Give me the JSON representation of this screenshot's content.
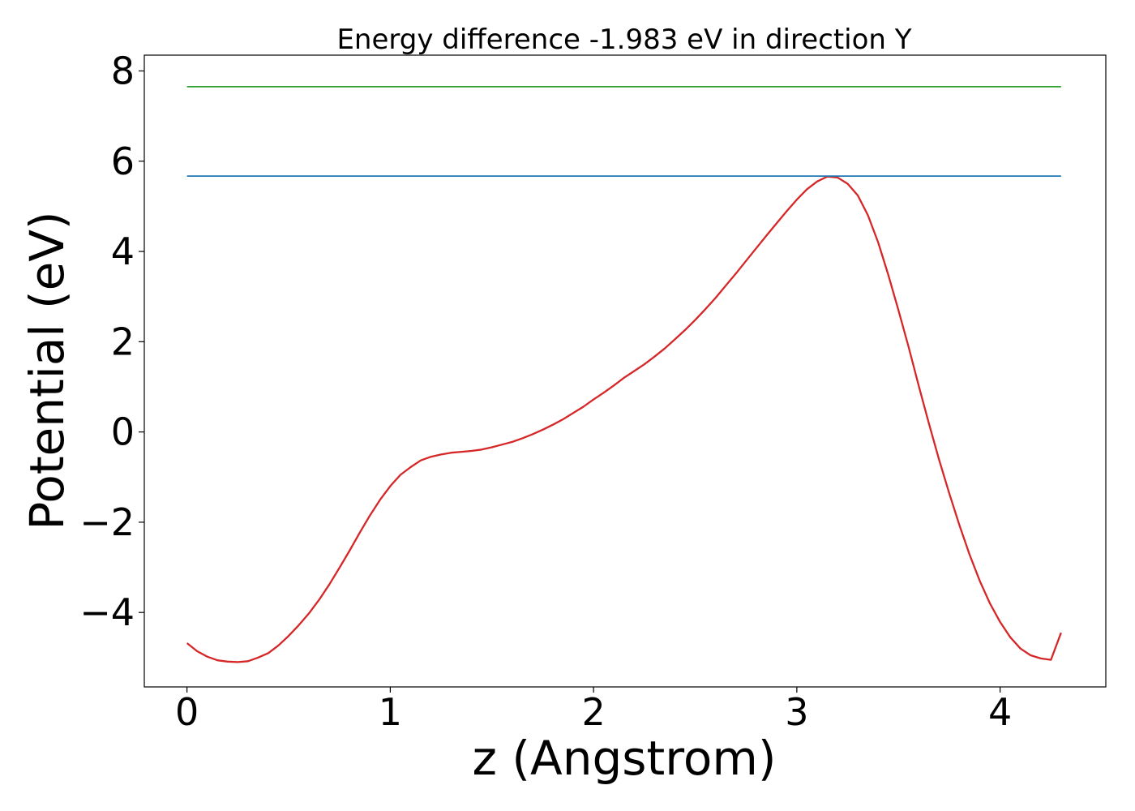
{
  "chart_data": {
    "type": "line",
    "title": "Energy difference -1.983 eV in direction Y",
    "xlabel": "z (Angstrom)",
    "ylabel": "Potential (eV)",
    "xlim": [
      -0.21,
      4.52
    ],
    "ylim": [
      -5.65,
      8.35
    ],
    "xticks": [
      0,
      1,
      2,
      3,
      4
    ],
    "xtick_labels": [
      "0",
      "1",
      "2",
      "3",
      "4"
    ],
    "yticks": [
      -4,
      -2,
      0,
      2,
      4,
      6,
      8
    ],
    "ytick_labels": [
      "−4",
      "−2",
      "0",
      "2",
      "4",
      "6",
      "8"
    ],
    "grid": false,
    "legend": "none",
    "series": [
      {
        "color": "#d62728",
        "x": [
          0.0,
          0.05,
          0.1,
          0.15,
          0.2,
          0.25,
          0.3,
          0.35,
          0.4,
          0.45,
          0.5,
          0.55,
          0.6,
          0.65,
          0.7,
          0.75,
          0.8,
          0.85,
          0.9,
          0.95,
          1.0,
          1.05,
          1.1,
          1.15,
          1.2,
          1.25,
          1.3,
          1.35,
          1.4,
          1.45,
          1.5,
          1.55,
          1.6,
          1.65,
          1.7,
          1.75,
          1.8,
          1.85,
          1.9,
          1.95,
          2.0,
          2.05,
          2.1,
          2.15,
          2.2,
          2.25,
          2.3,
          2.35,
          2.4,
          2.45,
          2.5,
          2.55,
          2.6,
          2.65,
          2.7,
          2.75,
          2.8,
          2.85,
          2.9,
          2.95,
          3.0,
          3.05,
          3.1,
          3.15,
          3.2,
          3.25,
          3.3,
          3.35,
          3.4,
          3.45,
          3.5,
          3.55,
          3.6,
          3.65,
          3.7,
          3.75,
          3.8,
          3.85,
          3.9,
          3.95,
          4.0,
          4.05,
          4.1,
          4.15,
          4.2,
          4.25,
          4.3
        ],
        "y": [
          -4.68,
          -4.86,
          -4.98,
          -5.06,
          -5.09,
          -5.1,
          -5.08,
          -5.0,
          -4.9,
          -4.73,
          -4.52,
          -4.28,
          -4.02,
          -3.72,
          -3.38,
          -3.01,
          -2.63,
          -2.23,
          -1.85,
          -1.5,
          -1.2,
          -0.95,
          -0.78,
          -0.63,
          -0.55,
          -0.5,
          -0.46,
          -0.44,
          -0.42,
          -0.39,
          -0.34,
          -0.28,
          -0.22,
          -0.14,
          -0.05,
          0.05,
          0.16,
          0.28,
          0.42,
          0.56,
          0.72,
          0.87,
          1.03,
          1.2,
          1.35,
          1.5,
          1.67,
          1.85,
          2.05,
          2.26,
          2.48,
          2.72,
          2.97,
          3.24,
          3.51,
          3.79,
          4.07,
          4.35,
          4.62,
          4.89,
          5.15,
          5.38,
          5.55,
          5.66,
          5.64,
          5.5,
          5.24,
          4.8,
          4.2,
          3.48,
          2.7,
          1.88,
          1.02,
          0.18,
          -0.62,
          -1.36,
          -2.07,
          -2.72,
          -3.3,
          -3.8,
          -4.21,
          -4.55,
          -4.8,
          -4.95,
          -5.02,
          -5.05,
          -4.45
        ]
      },
      {
        "color": "#1f77b4",
        "x": [
          0.0,
          4.3
        ],
        "y": [
          5.67,
          5.67
        ]
      },
      {
        "color": "#2ca02c",
        "x": [
          0.0,
          4.3
        ],
        "y": [
          7.65,
          7.65
        ]
      }
    ]
  }
}
